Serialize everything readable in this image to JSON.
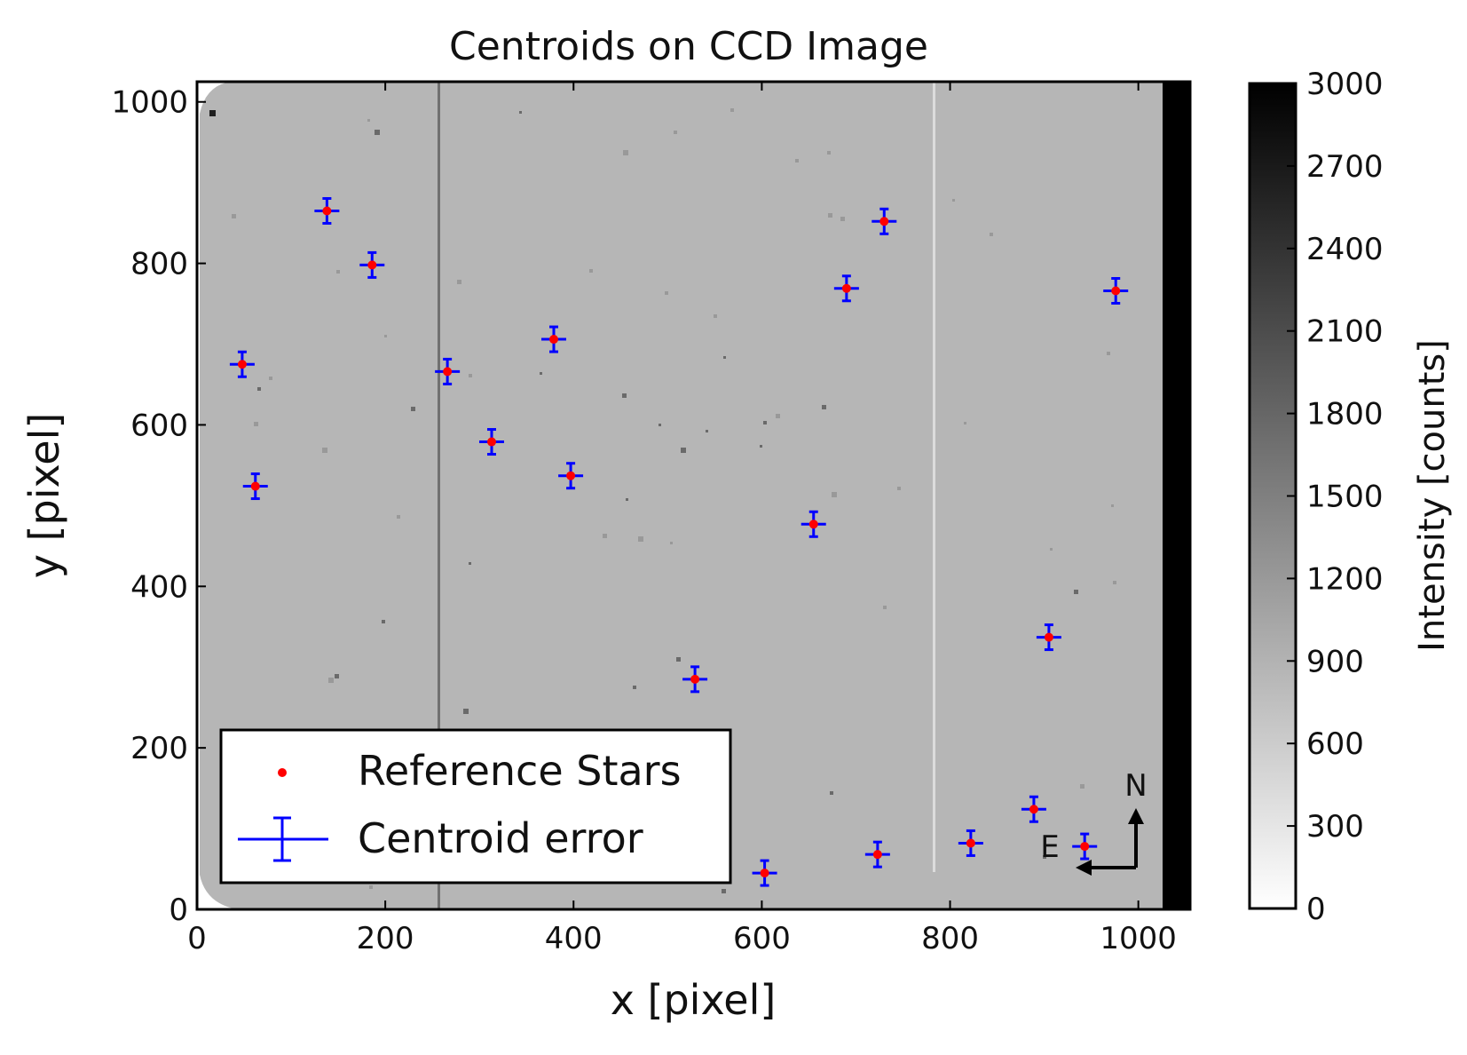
{
  "chart_data": {
    "type": "scatter",
    "title": "Centroids on CCD Image",
    "xlabel": "x [pixel]",
    "ylabel": "y [pixel]",
    "xlim": [
      0,
      1055
    ],
    "ylim": [
      0,
      1025
    ],
    "xticks": [
      "0",
      "200",
      "400",
      "600",
      "800",
      "1000"
    ],
    "yticks": [
      "0",
      "200",
      "400",
      "600",
      "800",
      "1000"
    ],
    "xtick_values": [
      0,
      200,
      400,
      600,
      800,
      1000
    ],
    "ytick_values": [
      0,
      200,
      400,
      600,
      800,
      1000
    ],
    "grid": false,
    "legend_position": "lower-left",
    "background_image": "grayscale CCD frame",
    "colormap": "gray_r",
    "colorbar": {
      "label": "Intensity  [counts]",
      "min": 0,
      "max": 3000,
      "ticks": [
        "0",
        "300",
        "600",
        "900",
        "1200",
        "1500",
        "1800",
        "2100",
        "2400",
        "2700",
        "3000"
      ],
      "tick_values": [
        0,
        300,
        600,
        900,
        1200,
        1500,
        1800,
        2100,
        2400,
        2700,
        3000
      ]
    },
    "series": [
      {
        "name": "Reference Stars",
        "marker": "dot",
        "color": "#ff0000",
        "points": [
          [
            138,
            865
          ],
          [
            186,
            798
          ],
          [
            48,
            675
          ],
          [
            62,
            524
          ],
          [
            266,
            666
          ],
          [
            313,
            579
          ],
          [
            379,
            706
          ],
          [
            397,
            537
          ],
          [
            730,
            852
          ],
          [
            690,
            769
          ],
          [
            976,
            766
          ],
          [
            655,
            477
          ],
          [
            529,
            285
          ],
          [
            905,
            337
          ],
          [
            603,
            45
          ],
          [
            723,
            68
          ],
          [
            822,
            82
          ],
          [
            889,
            124
          ],
          [
            943,
            78
          ]
        ]
      },
      {
        "name": "Centroid error",
        "marker": "errorbar",
        "color": "#0000ff",
        "points": [
          [
            138,
            865
          ],
          [
            186,
            798
          ],
          [
            48,
            675
          ],
          [
            62,
            524
          ],
          [
            266,
            666
          ],
          [
            313,
            579
          ],
          [
            379,
            706
          ],
          [
            397,
            537
          ],
          [
            730,
            852
          ],
          [
            690,
            769
          ],
          [
            976,
            766
          ],
          [
            655,
            477
          ],
          [
            529,
            285
          ],
          [
            905,
            337
          ],
          [
            603,
            45
          ],
          [
            723,
            68
          ],
          [
            822,
            82
          ],
          [
            889,
            124
          ],
          [
            943,
            78
          ]
        ]
      }
    ],
    "compass": {
      "north": "N",
      "east": "E"
    }
  },
  "colors": {
    "reference": "#ff0000",
    "centroid": "#0000ff",
    "ccd_background": "#b6b6b6",
    "frame": "#000000"
  }
}
